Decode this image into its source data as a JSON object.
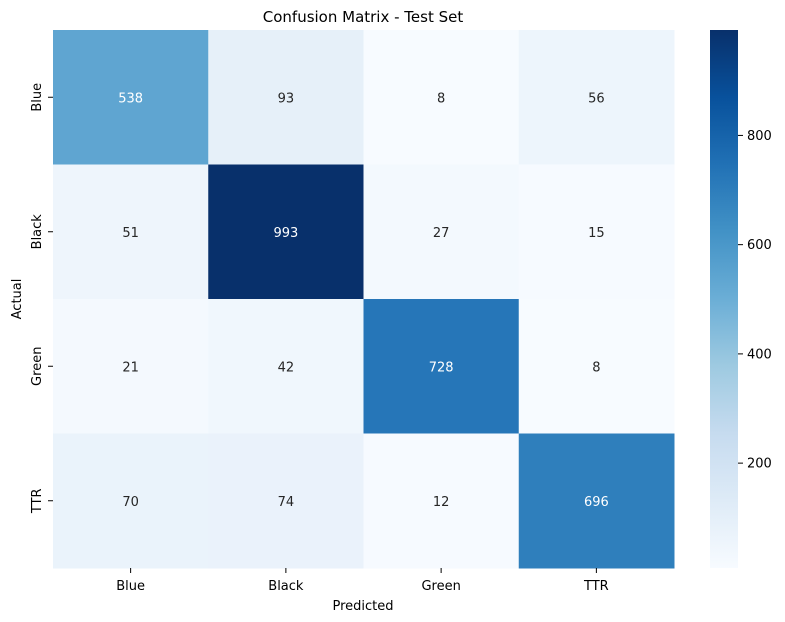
{
  "chart_data": {
    "type": "heatmap",
    "title": "Confusion Matrix - Test Set",
    "xlabel": "Predicted",
    "ylabel": "Actual",
    "x_categories": [
      "Blue",
      "Black",
      "Green",
      "TTR"
    ],
    "y_categories": [
      "Blue",
      "Black",
      "Green",
      "TTR"
    ],
    "values": [
      [
        538,
        93,
        8,
        56
      ],
      [
        51,
        993,
        27,
        15
      ],
      [
        21,
        42,
        728,
        8
      ],
      [
        70,
        74,
        12,
        696
      ]
    ],
    "colormap": "Blues",
    "color_range": [
      8,
      993
    ],
    "colorbar_ticks": [
      200,
      400,
      600,
      800
    ]
  }
}
